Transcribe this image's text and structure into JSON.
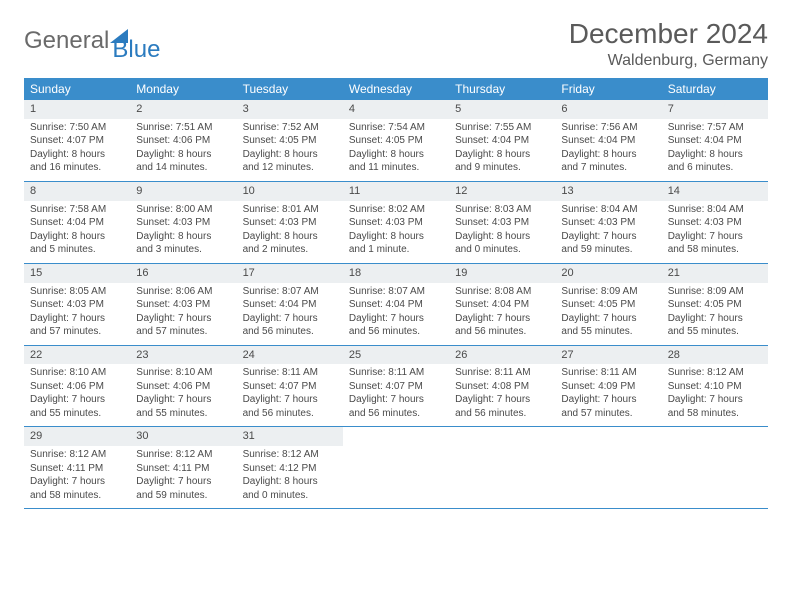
{
  "logo": {
    "part1": "General",
    "part2": "Blue"
  },
  "title": "December 2024",
  "location": "Waldenburg, Germany",
  "colors": {
    "header_blue": "#3a8dcb",
    "daynum_bg": "#eceff1",
    "text": "#4a4a4a",
    "rule": "#3a8dcb"
  },
  "weekdays": [
    "Sunday",
    "Monday",
    "Tuesday",
    "Wednesday",
    "Thursday",
    "Friday",
    "Saturday"
  ],
  "days": [
    {
      "n": "1",
      "sr": "Sunrise: 7:50 AM",
      "ss": "Sunset: 4:07 PM",
      "dl1": "Daylight: 8 hours",
      "dl2": "and 16 minutes."
    },
    {
      "n": "2",
      "sr": "Sunrise: 7:51 AM",
      "ss": "Sunset: 4:06 PM",
      "dl1": "Daylight: 8 hours",
      "dl2": "and 14 minutes."
    },
    {
      "n": "3",
      "sr": "Sunrise: 7:52 AM",
      "ss": "Sunset: 4:05 PM",
      "dl1": "Daylight: 8 hours",
      "dl2": "and 12 minutes."
    },
    {
      "n": "4",
      "sr": "Sunrise: 7:54 AM",
      "ss": "Sunset: 4:05 PM",
      "dl1": "Daylight: 8 hours",
      "dl2": "and 11 minutes."
    },
    {
      "n": "5",
      "sr": "Sunrise: 7:55 AM",
      "ss": "Sunset: 4:04 PM",
      "dl1": "Daylight: 8 hours",
      "dl2": "and 9 minutes."
    },
    {
      "n": "6",
      "sr": "Sunrise: 7:56 AM",
      "ss": "Sunset: 4:04 PM",
      "dl1": "Daylight: 8 hours",
      "dl2": "and 7 minutes."
    },
    {
      "n": "7",
      "sr": "Sunrise: 7:57 AM",
      "ss": "Sunset: 4:04 PM",
      "dl1": "Daylight: 8 hours",
      "dl2": "and 6 minutes."
    },
    {
      "n": "8",
      "sr": "Sunrise: 7:58 AM",
      "ss": "Sunset: 4:04 PM",
      "dl1": "Daylight: 8 hours",
      "dl2": "and 5 minutes."
    },
    {
      "n": "9",
      "sr": "Sunrise: 8:00 AM",
      "ss": "Sunset: 4:03 PM",
      "dl1": "Daylight: 8 hours",
      "dl2": "and 3 minutes."
    },
    {
      "n": "10",
      "sr": "Sunrise: 8:01 AM",
      "ss": "Sunset: 4:03 PM",
      "dl1": "Daylight: 8 hours",
      "dl2": "and 2 minutes."
    },
    {
      "n": "11",
      "sr": "Sunrise: 8:02 AM",
      "ss": "Sunset: 4:03 PM",
      "dl1": "Daylight: 8 hours",
      "dl2": "and 1 minute."
    },
    {
      "n": "12",
      "sr": "Sunrise: 8:03 AM",
      "ss": "Sunset: 4:03 PM",
      "dl1": "Daylight: 8 hours",
      "dl2": "and 0 minutes."
    },
    {
      "n": "13",
      "sr": "Sunrise: 8:04 AM",
      "ss": "Sunset: 4:03 PM",
      "dl1": "Daylight: 7 hours",
      "dl2": "and 59 minutes."
    },
    {
      "n": "14",
      "sr": "Sunrise: 8:04 AM",
      "ss": "Sunset: 4:03 PM",
      "dl1": "Daylight: 7 hours",
      "dl2": "and 58 minutes."
    },
    {
      "n": "15",
      "sr": "Sunrise: 8:05 AM",
      "ss": "Sunset: 4:03 PM",
      "dl1": "Daylight: 7 hours",
      "dl2": "and 57 minutes."
    },
    {
      "n": "16",
      "sr": "Sunrise: 8:06 AM",
      "ss": "Sunset: 4:03 PM",
      "dl1": "Daylight: 7 hours",
      "dl2": "and 57 minutes."
    },
    {
      "n": "17",
      "sr": "Sunrise: 8:07 AM",
      "ss": "Sunset: 4:04 PM",
      "dl1": "Daylight: 7 hours",
      "dl2": "and 56 minutes."
    },
    {
      "n": "18",
      "sr": "Sunrise: 8:07 AM",
      "ss": "Sunset: 4:04 PM",
      "dl1": "Daylight: 7 hours",
      "dl2": "and 56 minutes."
    },
    {
      "n": "19",
      "sr": "Sunrise: 8:08 AM",
      "ss": "Sunset: 4:04 PM",
      "dl1": "Daylight: 7 hours",
      "dl2": "and 56 minutes."
    },
    {
      "n": "20",
      "sr": "Sunrise: 8:09 AM",
      "ss": "Sunset: 4:05 PM",
      "dl1": "Daylight: 7 hours",
      "dl2": "and 55 minutes."
    },
    {
      "n": "21",
      "sr": "Sunrise: 8:09 AM",
      "ss": "Sunset: 4:05 PM",
      "dl1": "Daylight: 7 hours",
      "dl2": "and 55 minutes."
    },
    {
      "n": "22",
      "sr": "Sunrise: 8:10 AM",
      "ss": "Sunset: 4:06 PM",
      "dl1": "Daylight: 7 hours",
      "dl2": "and 55 minutes."
    },
    {
      "n": "23",
      "sr": "Sunrise: 8:10 AM",
      "ss": "Sunset: 4:06 PM",
      "dl1": "Daylight: 7 hours",
      "dl2": "and 55 minutes."
    },
    {
      "n": "24",
      "sr": "Sunrise: 8:11 AM",
      "ss": "Sunset: 4:07 PM",
      "dl1": "Daylight: 7 hours",
      "dl2": "and 56 minutes."
    },
    {
      "n": "25",
      "sr": "Sunrise: 8:11 AM",
      "ss": "Sunset: 4:07 PM",
      "dl1": "Daylight: 7 hours",
      "dl2": "and 56 minutes."
    },
    {
      "n": "26",
      "sr": "Sunrise: 8:11 AM",
      "ss": "Sunset: 4:08 PM",
      "dl1": "Daylight: 7 hours",
      "dl2": "and 56 minutes."
    },
    {
      "n": "27",
      "sr": "Sunrise: 8:11 AM",
      "ss": "Sunset: 4:09 PM",
      "dl1": "Daylight: 7 hours",
      "dl2": "and 57 minutes."
    },
    {
      "n": "28",
      "sr": "Sunrise: 8:12 AM",
      "ss": "Sunset: 4:10 PM",
      "dl1": "Daylight: 7 hours",
      "dl2": "and 58 minutes."
    },
    {
      "n": "29",
      "sr": "Sunrise: 8:12 AM",
      "ss": "Sunset: 4:11 PM",
      "dl1": "Daylight: 7 hours",
      "dl2": "and 58 minutes."
    },
    {
      "n": "30",
      "sr": "Sunrise: 8:12 AM",
      "ss": "Sunset: 4:11 PM",
      "dl1": "Daylight: 7 hours",
      "dl2": "and 59 minutes."
    },
    {
      "n": "31",
      "sr": "Sunrise: 8:12 AM",
      "ss": "Sunset: 4:12 PM",
      "dl1": "Daylight: 8 hours",
      "dl2": "and 0 minutes."
    }
  ]
}
